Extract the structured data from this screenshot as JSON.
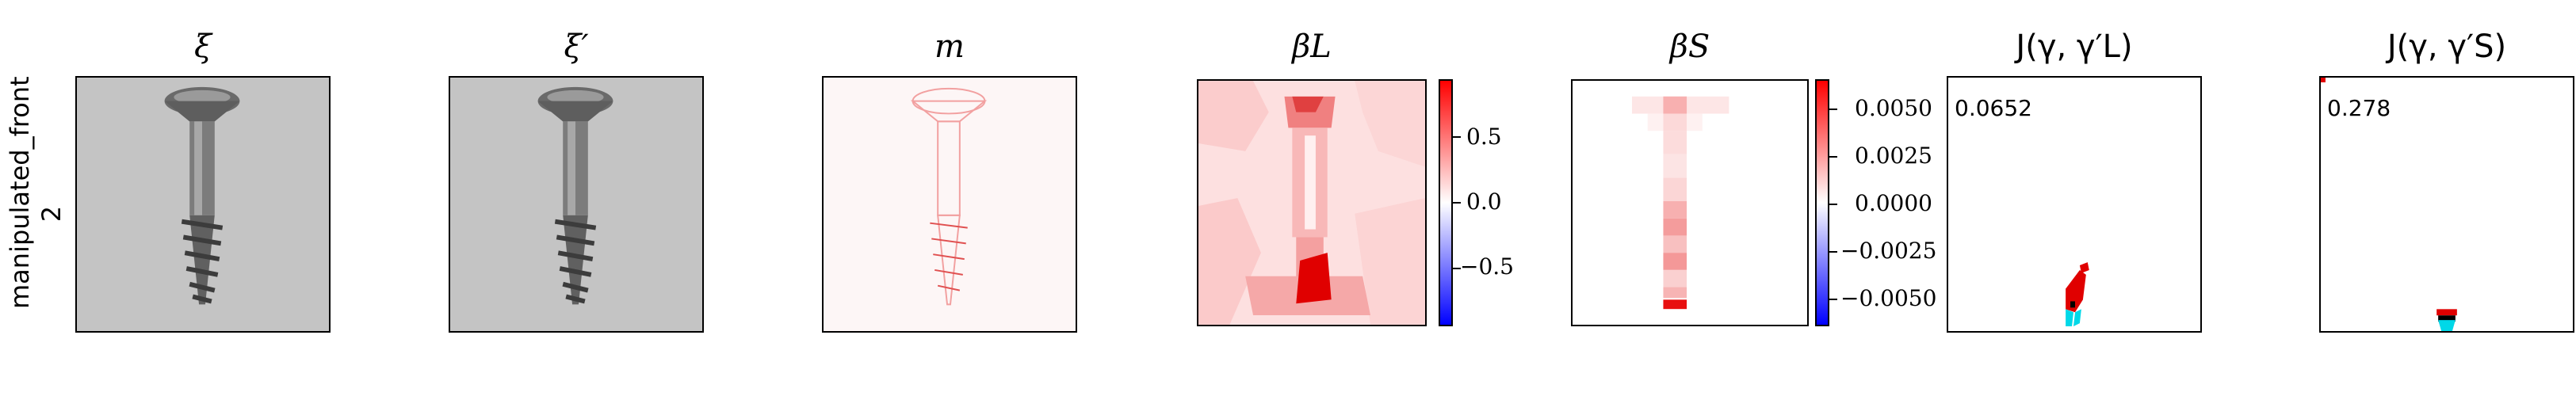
{
  "row_label": {
    "line1": "manipulated_front",
    "line2": "2"
  },
  "panels": [
    {
      "id": "xi",
      "title": "ξ"
    },
    {
      "id": "xi-prime",
      "title": "ξ′"
    },
    {
      "id": "m",
      "title": "m"
    },
    {
      "id": "beta-l",
      "title": "βL",
      "colorbar_ticks": [
        "0.5",
        "0.0",
        "−0.5"
      ]
    },
    {
      "id": "beta-s",
      "title": "βS",
      "colorbar_ticks": [
        "0.0050",
        "0.0025",
        "0.0000",
        "−0.0025",
        "−0.0050"
      ]
    },
    {
      "id": "j-l",
      "title": "J(γ, γ′L)",
      "score": "0.0652"
    },
    {
      "id": "j-s",
      "title": "J(γ, γ′S)",
      "score": "0.278"
    }
  ],
  "colors": {
    "positive": "#ff0000",
    "negative": "#0000ff",
    "neutral": "#ffffff",
    "cyan": "#00e5ee"
  }
}
